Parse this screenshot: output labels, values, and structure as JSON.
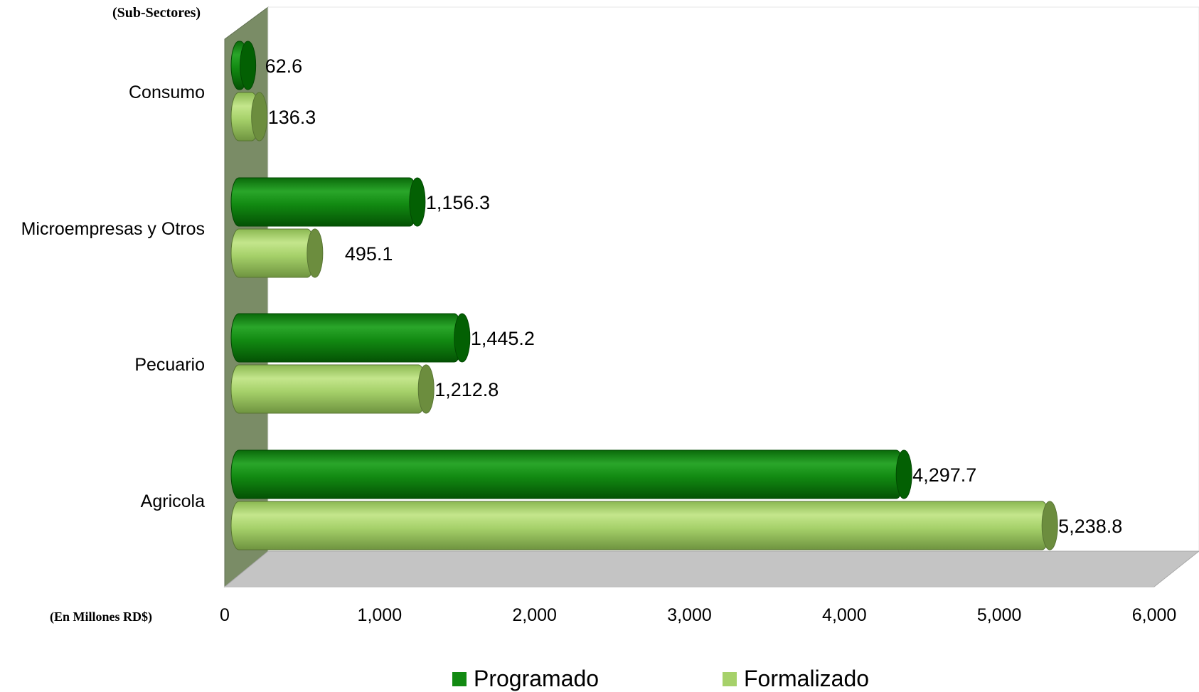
{
  "chart_data": {
    "type": "bar",
    "orientation": "horizontal",
    "three_d": true,
    "title": "",
    "ylabel": "(Sub-Sectores)",
    "xlabel": "(En Millones RD$)",
    "categories": [
      "Consumo",
      "Microempresas y Otros",
      "Pecuario",
      "Agricola"
    ],
    "series": [
      {
        "name": "Programado",
        "color": "#128a12",
        "values": [
          62.6,
          1156.3,
          1445.2,
          4297.7
        ]
      },
      {
        "name": "Formalizado",
        "color": "#a6d16a",
        "values": [
          136.3,
          495.1,
          1212.8,
          5238.8
        ]
      }
    ],
    "data_labels": [
      [
        "62.6",
        "1,156.3",
        "1,445.2",
        "4,297.7"
      ],
      [
        "136.3",
        "495.1",
        "1,212.8",
        "5,238.8"
      ]
    ],
    "xlim": [
      0,
      6000
    ],
    "x_ticks": [
      0,
      1000,
      2000,
      3000,
      4000,
      5000,
      6000
    ],
    "x_tick_labels": [
      "0",
      "1,000",
      "2,000",
      "3,000",
      "4,000",
      "5,000",
      "6,000"
    ],
    "grid": false,
    "legend_position": "bottom"
  }
}
